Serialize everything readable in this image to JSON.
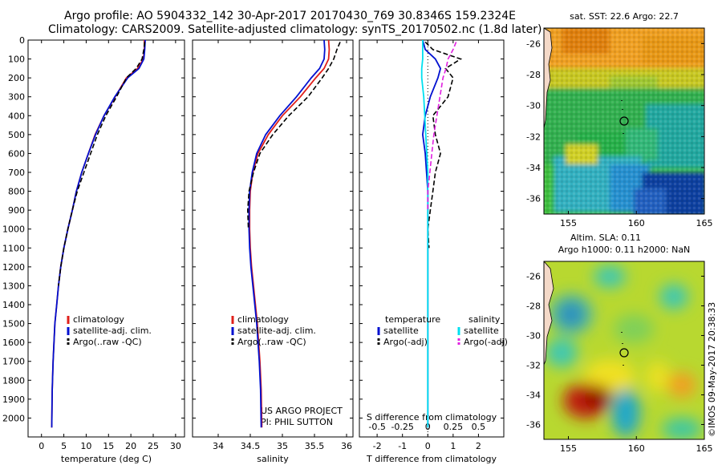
{
  "header": {
    "line1": "Argo profile: AO 5904332_142 30-Apr-2017 20170430_769 30.8346S 159.2324E",
    "line2": "Climatology: CARS2009. Satellite-adjusted climatology: synTS_20170502.nc (1.8d later)"
  },
  "side_credit": "©IMOS 09-May-2017 20:38:33",
  "project": {
    "line1": "US ARGO PROJECT",
    "line2": "PI: PHIL SUTTON"
  },
  "colors": {
    "climatology": "#e0201b",
    "satellite": "#0010d0",
    "argo": "#000000",
    "sal_satellite": "#00e0f0",
    "sal_argo": "#e020e0"
  },
  "chart_data": [
    {
      "id": "temperature",
      "type": "line",
      "xlabel": "temperature (deg C)",
      "ylabel": "",
      "xlim": [
        -3,
        32
      ],
      "ylim": [
        2100,
        0
      ],
      "xticks": [
        0,
        5,
        10,
        15,
        20,
        25,
        30
      ],
      "yticks": [
        0,
        100,
        200,
        300,
        400,
        500,
        600,
        700,
        800,
        900,
        1000,
        1100,
        1200,
        1300,
        1400,
        1500,
        1600,
        1700,
        1800,
        1900,
        2000
      ],
      "legend": [
        "climatology",
        "satellite-adj. clim.",
        "Argo(..raw -QC)"
      ],
      "legend_placement": "lower-center",
      "series": [
        {
          "name": "climatology",
          "color": "#e0201b",
          "style": "solid",
          "x": [
            23.0,
            23.0,
            22.8,
            21.5,
            19.0,
            16.5,
            14.0,
            12.0,
            10.5,
            9.0,
            7.8,
            6.9,
            5.9,
            5.0,
            4.3,
            3.8,
            3.4,
            3.0,
            2.8,
            2.6,
            2.4,
            2.3
          ],
          "y": [
            0,
            50,
            100,
            150,
            200,
            300,
            400,
            500,
            600,
            700,
            800,
            900,
            1000,
            1100,
            1200,
            1300,
            1400,
            1500,
            1600,
            1700,
            1850,
            2050
          ]
        },
        {
          "name": "satellite-adj. clim.",
          "color": "#0010d0",
          "style": "solid",
          "x": [
            23.2,
            23.1,
            22.9,
            21.8,
            19.3,
            16.4,
            14.0,
            12.1,
            10.5,
            9.0,
            7.8,
            6.9,
            5.9,
            5.0,
            4.3,
            3.8,
            3.4,
            3.0,
            2.8,
            2.6,
            2.4,
            2.3
          ],
          "y": [
            0,
            50,
            100,
            150,
            200,
            300,
            400,
            500,
            600,
            700,
            800,
            900,
            1000,
            1100,
            1200,
            1300,
            1400,
            1500,
            1600,
            1700,
            1850,
            2050
          ]
        },
        {
          "name": "Argo(..raw -QC)",
          "color": "#000000",
          "style": "dashed",
          "x": [
            23.1,
            22.9,
            22.5,
            21.2,
            19.0,
            16.8,
            14.4,
            12.5,
            11.0,
            9.5,
            8.0,
            6.9,
            5.9,
            5.0,
            4.3,
            3.8
          ],
          "y": [
            10,
            50,
            100,
            150,
            200,
            300,
            400,
            500,
            600,
            700,
            800,
            900,
            1000,
            1100,
            1200,
            1300
          ]
        }
      ]
    },
    {
      "id": "salinity",
      "type": "line",
      "xlabel": "salinity",
      "ylabel": "",
      "xlim": [
        33.6,
        36.1
      ],
      "ylim": [
        2100,
        0
      ],
      "xticks": [
        34,
        34.5,
        35,
        35.5,
        36
      ],
      "legend": [
        "climatology",
        "satellite-adj. clim.",
        "Argo(..raw -QC)"
      ],
      "legend_placement": "lower-center",
      "series": [
        {
          "name": "climatology",
          "color": "#e0201b",
          "style": "solid",
          "x": [
            35.72,
            35.73,
            35.72,
            35.65,
            35.52,
            35.28,
            35.0,
            34.78,
            34.62,
            34.54,
            34.5,
            34.49,
            34.49,
            34.5,
            34.52,
            34.55,
            34.58,
            34.61,
            34.63,
            34.65,
            34.67,
            34.68
          ],
          "y": [
            0,
            50,
            100,
            150,
            200,
            300,
            400,
            500,
            600,
            700,
            800,
            900,
            1000,
            1100,
            1200,
            1300,
            1400,
            1500,
            1600,
            1700,
            1850,
            2050
          ]
        },
        {
          "name": "satellite-adj. clim.",
          "color": "#0010d0",
          "style": "solid",
          "x": [
            35.65,
            35.66,
            35.65,
            35.58,
            35.45,
            35.22,
            34.96,
            34.74,
            34.6,
            34.53,
            34.49,
            34.48,
            34.48,
            34.49,
            34.51,
            34.54,
            34.57,
            34.6,
            34.62,
            34.64,
            34.66,
            34.67
          ],
          "y": [
            0,
            50,
            100,
            150,
            200,
            300,
            400,
            500,
            600,
            700,
            800,
            900,
            1000,
            1100,
            1200,
            1300,
            1400,
            1500,
            1600,
            1700,
            1850,
            2050
          ]
        },
        {
          "name": "Argo(..raw -QC)",
          "color": "#000000",
          "style": "dashed",
          "x": [
            35.9,
            35.85,
            35.8,
            35.72,
            35.62,
            35.4,
            35.1,
            34.85,
            34.65,
            34.55,
            34.48,
            34.46,
            34.47
          ],
          "y": [
            10,
            50,
            100,
            150,
            200,
            300,
            400,
            500,
            600,
            700,
            800,
            900,
            1000
          ]
        }
      ]
    },
    {
      "id": "difference",
      "type": "line",
      "xlabel": "T difference from climatology",
      "xlabel_top": "S difference from climatology",
      "xlim": [
        -2.7,
        3
      ],
      "ylim": [
        2100,
        0
      ],
      "xticks": [
        -2,
        -1,
        0,
        1,
        2
      ],
      "xticks_top": [
        -0.5,
        -0.25,
        0,
        0.25,
        0.5
      ],
      "xticklabels_top": [
        "-0.5",
        "-0.25",
        "0",
        "0.25",
        "0.5"
      ],
      "legend_headers": [
        "temperature",
        "salinity"
      ],
      "legend": [
        "satellite",
        "Argo(-adj)",
        "satellite",
        "Argo(-adj)"
      ],
      "legend_placement": "lower-center",
      "series": [
        {
          "name": "satellite",
          "group": "temperature",
          "color": "#0010d0",
          "style": "solid",
          "x": [
            -0.2,
            -0.1,
            0.3,
            0.5,
            0.4,
            0.1,
            -0.1,
            -0.2,
            -0.1,
            -0.05,
            0.0,
            0.0,
            0.0,
            0.0,
            0.0,
            0.0
          ],
          "y": [
            0,
            50,
            100,
            150,
            200,
            300,
            400,
            500,
            600,
            700,
            800,
            900,
            1000,
            1200,
            1500,
            2050
          ]
        },
        {
          "name": "Argo(-adj)",
          "group": "temperature",
          "color": "#000000",
          "style": "dashed",
          "x": [
            -0.1,
            0.2,
            1.3,
            0.7,
            1.0,
            0.8,
            0.2,
            0.3,
            0.5,
            0.3,
            0.2,
            0.1,
            0.0,
            0.05
          ],
          "y": [
            10,
            50,
            100,
            150,
            200,
            300,
            400,
            500,
            600,
            700,
            800,
            900,
            1000,
            1100
          ]
        },
        {
          "name": "satellite",
          "group": "salinity",
          "color": "#00e0f0",
          "style": "solid",
          "x": [
            -0.05,
            -0.05,
            -0.05,
            -0.06,
            -0.06,
            -0.04,
            -0.03,
            -0.02,
            -0.01,
            0.0,
            0.0,
            0.0,
            0.0,
            0.0,
            0.0
          ],
          "y": [
            0,
            50,
            100,
            150,
            200,
            300,
            400,
            500,
            600,
            700,
            800,
            900,
            1000,
            1500,
            2050
          ]
        },
        {
          "name": "Argo(-adj)",
          "group": "salinity",
          "color": "#e020e0",
          "style": "dashed",
          "x": [
            0.28,
            0.25,
            0.2,
            0.18,
            0.15,
            0.12,
            0.09,
            0.06,
            0.04,
            0.02,
            0.0,
            0.0
          ],
          "y": [
            10,
            50,
            100,
            150,
            200,
            300,
            400,
            500,
            600,
            700,
            800,
            900
          ]
        }
      ]
    },
    {
      "id": "sst_map",
      "type": "heatmap",
      "title": "sat. SST: 22.6  Argo: 22.7",
      "xlim": [
        153.2,
        165
      ],
      "ylim": [
        -37,
        -25
      ],
      "xticks": [
        155,
        160,
        165
      ],
      "yticks": [
        -26,
        -28,
        -30,
        -32,
        -34,
        -36
      ],
      "argo_position": [
        159.2324,
        -30.8346
      ]
    },
    {
      "id": "sla_map",
      "type": "heatmap",
      "title_line1": "Altim. SLA: 0.11",
      "title_line2": "Argo h1000: 0.11 h2000: NaN",
      "xlim": [
        153.2,
        165
      ],
      "ylim": [
        -37,
        -25
      ],
      "xticks": [
        155,
        160,
        165
      ],
      "yticks": [
        -26,
        -28,
        -30,
        -32,
        -34,
        -36
      ],
      "argo_position": [
        159.2324,
        -30.8346
      ]
    }
  ]
}
